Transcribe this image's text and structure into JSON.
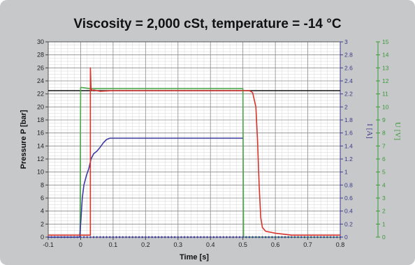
{
  "chart_data": {
    "type": "line",
    "title": "Viscosity = 2,000 cSt, temperature = -14 °C",
    "xlabel": "Time [s]",
    "ylabel": "Pressure P [bar]",
    "y2label": "I [A]",
    "y3label": "U [V]",
    "xlim": [
      -0.1,
      0.8
    ],
    "ylim": [
      0,
      30
    ],
    "y2lim": [
      0,
      3
    ],
    "y3lim": [
      0,
      15
    ],
    "x_ticks": [
      "-0.1",
      "0",
      "0.1",
      "0.2",
      "0.3",
      "0.4",
      "0.5",
      "0.6",
      "0.7",
      "0.8"
    ],
    "y_ticks": [
      "0",
      "2",
      "4",
      "6",
      "8",
      "10",
      "12",
      "14",
      "16",
      "18",
      "20",
      "22",
      "24",
      "26",
      "28",
      "30"
    ],
    "y2_ticks": [
      "0",
      "0.2",
      "0.4",
      "0.6",
      "0.8",
      "1",
      "1.2",
      "1.4",
      "1.6",
      "1.8",
      "2",
      "2.2",
      "2.4",
      "2.6",
      "2.8",
      "3"
    ],
    "y3_ticks": [
      "0",
      "1",
      "2",
      "3",
      "4",
      "5",
      "6",
      "7",
      "8",
      "9",
      "10",
      "11",
      "12",
      "13",
      "14",
      "15"
    ],
    "grid": true,
    "series": [
      {
        "color": "#111111",
        "axis": "P",
        "x": [
          -0.1,
          0.8
        ],
        "y": [
          22.5,
          22.5
        ]
      },
      {
        "color": "#49a84a",
        "axis": "U",
        "x": [
          -0.1,
          -0.002,
          0.0,
          0.03,
          0.1,
          0.2,
          0.3,
          0.4,
          0.495,
          0.5,
          0.502,
          0.8
        ],
        "y": [
          0,
          0,
          11.5,
          11.4,
          11.4,
          11.4,
          11.4,
          11.4,
          11.4,
          11.4,
          0,
          0
        ]
      },
      {
        "color": "#3c3aa0",
        "axis": "I",
        "x": [
          -0.1,
          -0.003,
          0.0,
          0.005,
          0.01,
          0.018,
          0.025,
          0.032,
          0.04,
          0.05,
          0.06,
          0.07,
          0.08,
          0.09,
          0.1,
          0.2,
          0.3,
          0.4,
          0.5
        ],
        "y": [
          0,
          0,
          0.2,
          0.6,
          0.8,
          0.95,
          1.05,
          1.2,
          1.28,
          1.32,
          1.38,
          1.45,
          1.5,
          1.52,
          1.52,
          1.52,
          1.52,
          1.52,
          1.52
        ]
      },
      {
        "color": "#d8342c",
        "axis": "P",
        "x": [
          -0.1,
          0.0,
          0.03,
          0.03,
          0.032,
          0.035,
          0.04,
          0.06,
          0.1,
          0.2,
          0.3,
          0.4,
          0.5,
          0.52,
          0.53,
          0.54,
          0.545,
          0.55,
          0.555,
          0.56,
          0.57,
          0.6,
          0.65,
          0.7,
          0.8
        ],
        "y": [
          0.3,
          0.3,
          0.3,
          26.0,
          22.9,
          22.5,
          22.6,
          22.4,
          22.5,
          22.5,
          22.5,
          22.5,
          22.5,
          22.5,
          22.2,
          20.0,
          15.0,
          8.0,
          3.0,
          1.5,
          0.9,
          0.6,
          0.3,
          0.3,
          0.3
        ]
      }
    ]
  }
}
